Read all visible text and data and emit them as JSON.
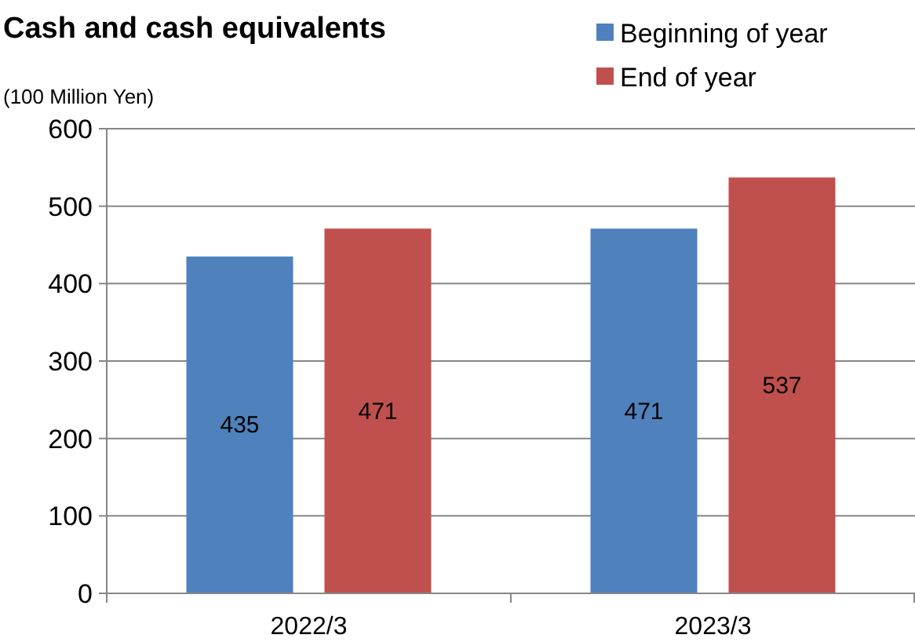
{
  "chart_data": {
    "type": "bar",
    "title": "Cash and cash equivalents",
    "ylabel": "(100 Million Yen)",
    "categories": [
      "2022/3",
      "2023/3"
    ],
    "series": [
      {
        "name": "Beginning of year",
        "color": "#4f81bd",
        "values": [
          435,
          471
        ]
      },
      {
        "name": "End of year",
        "color": "#c0504d",
        "values": [
          471,
          537
        ]
      }
    ],
    "ylim": [
      0,
      600
    ],
    "yticks": [
      0,
      100,
      200,
      300,
      400,
      500,
      600
    ],
    "grid": "y",
    "legend": "top right",
    "data_labels": true
  }
}
